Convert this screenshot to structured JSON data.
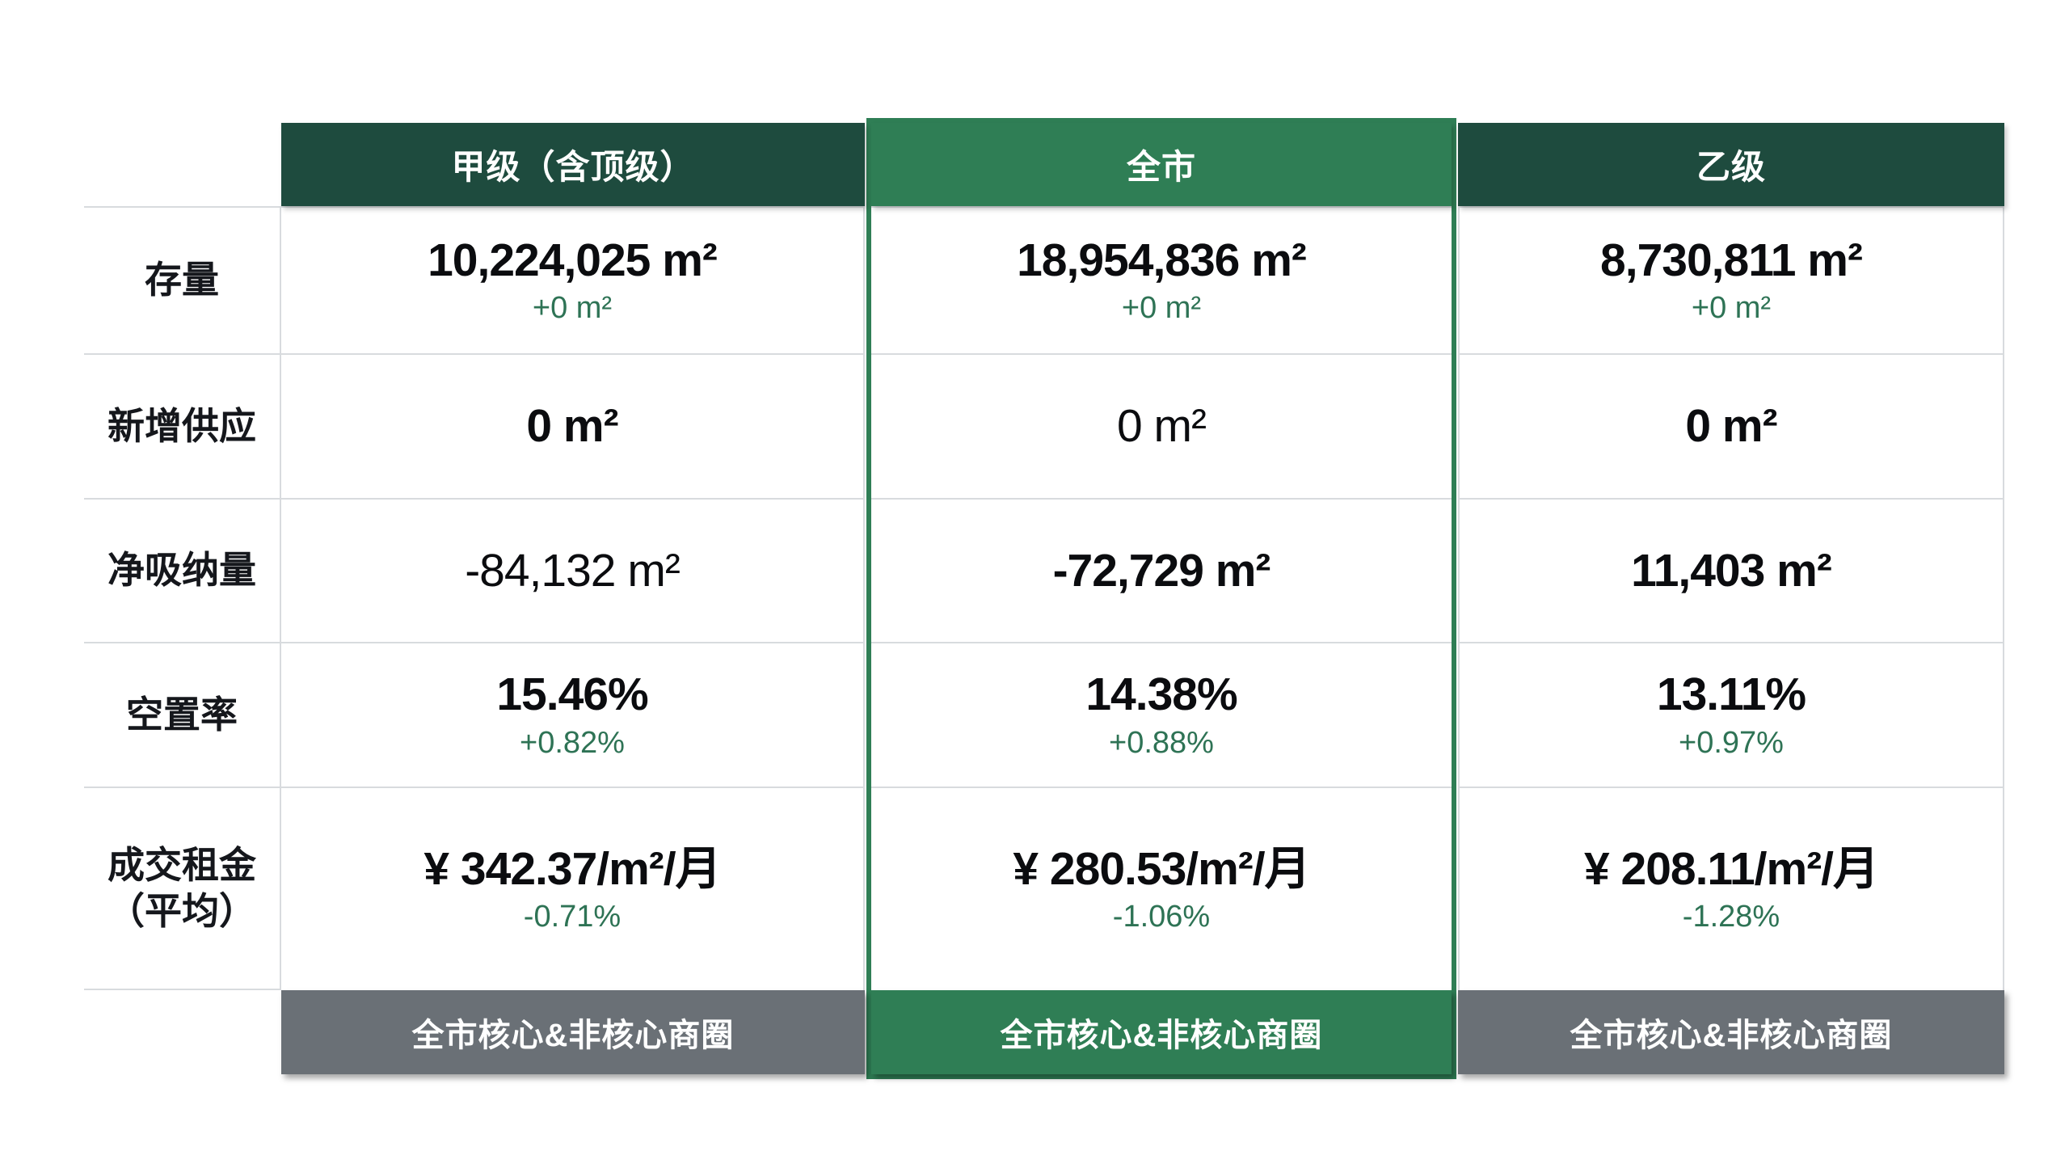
{
  "table": {
    "row_labels": [
      "存量",
      "新增供应",
      "净吸纳量",
      "空置率",
      "成交租金\n（平均）"
    ],
    "columns": [
      {
        "header": "甲级（含顶级）",
        "footer": "全市核心&非核心商圈",
        "cells": [
          {
            "value": "10,224,025 m²",
            "change": "+0 m²"
          },
          {
            "value": "0 m²",
            "change": ""
          },
          {
            "value": "-84,132 m²",
            "change": ""
          },
          {
            "value": "15.46%",
            "change": "+0.82%"
          },
          {
            "value": "¥ 342.37/m²/月",
            "change": "-0.71%"
          }
        ]
      },
      {
        "header": "全市",
        "footer": "全市核心&非核心商圈",
        "cells": [
          {
            "value": "18,954,836 m²",
            "change": "+0 m²"
          },
          {
            "value": "0 m²",
            "change": ""
          },
          {
            "value": "-72,729 m²",
            "change": ""
          },
          {
            "value": "14.38%",
            "change": "+0.88%"
          },
          {
            "value": "¥ 280.53/m²/月",
            "change": "-1.06%"
          }
        ]
      },
      {
        "header": "乙级",
        "footer": "全市核心&非核心商圈",
        "cells": [
          {
            "value": "8,730,811 m²",
            "change": "+0 m²"
          },
          {
            "value": "0 m²",
            "change": ""
          },
          {
            "value": "11,403 m²",
            "change": ""
          },
          {
            "value": "13.11%",
            "change": "+0.97%"
          },
          {
            "value": "¥ 208.11/m²/月",
            "change": "-1.28%"
          }
        ]
      }
    ]
  },
  "colors": {
    "header_dark_green": "#1E4B3E",
    "highlight_green": "#2F7E55",
    "footer_gray": "#6A7076",
    "change_text_green": "#2E7355",
    "grid_line": "#D8DBDE",
    "text_ink": "#15171C"
  },
  "chart_data": {
    "type": "table",
    "title": "",
    "columns": [
      "甲级（含顶级）",
      "全市",
      "乙级"
    ],
    "rows": [
      "存量",
      "新增供应",
      "净吸纳量",
      "空置率",
      "成交租金（平均）"
    ],
    "footers": [
      "全市核心&非核心商圈",
      "全市核心&非核心商圈",
      "全市核心&非核心商圈"
    ],
    "cells": [
      [
        "10,224,025 m² (+0 m²)",
        "18,954,836 m² (+0 m²)",
        "8,730,811 m² (+0 m²)"
      ],
      [
        "0 m²",
        "0 m²",
        "0 m²"
      ],
      [
        "-84,132 m²",
        "-72,729 m²",
        "11,403 m²"
      ],
      [
        "15.46% (+0.82%)",
        "14.38% (+0.88%)",
        "13.11% (+0.97%)"
      ],
      [
        "¥ 342.37/m²/月 (-0.71%)",
        "¥ 280.53/m²/月 (-1.06%)",
        "¥ 208.11/m²/月 (-1.28%)"
      ]
    ],
    "layout_hints": {
      "highlighted_column": "全市",
      "grid": true,
      "legend_position": "none"
    }
  }
}
